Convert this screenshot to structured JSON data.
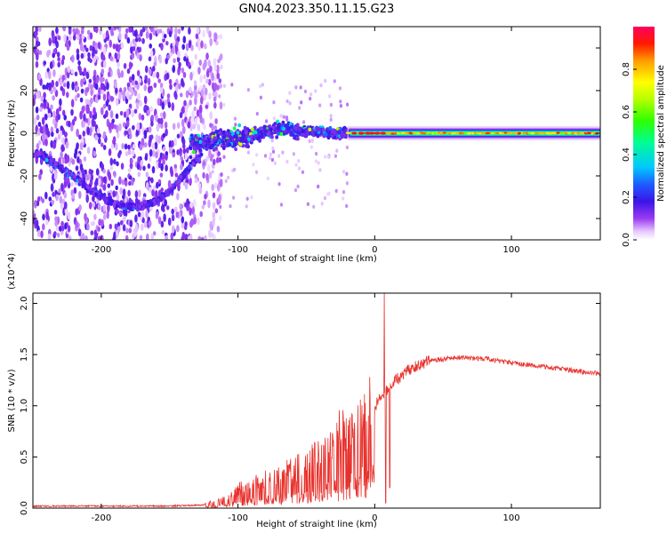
{
  "title": "GN04.2023.350.11.15.G23",
  "chart_data": [
    {
      "type": "heatmap",
      "xlabel": "Height of straight line (km)",
      "ylabel": "Frequency (Hz)",
      "xlim": [
        -250,
        165
      ],
      "ylim": [
        -50,
        50
      ],
      "xticks": [
        -200,
        -100,
        0,
        100
      ],
      "xtick_labels": [
        "-200",
        "-100",
        "0",
        "100"
      ],
      "yticks": [
        -40,
        -20,
        0,
        20,
        40
      ],
      "ytick_labels": [
        "-40",
        "-20",
        "0",
        "20",
        "40"
      ],
      "colorbar": {
        "label": "Normalized spectral amplitude",
        "range": [
          0.0,
          1.0
        ],
        "ticks": [
          0.0,
          0.2,
          0.4,
          0.6,
          0.8
        ],
        "tick_labels": [
          "0.0",
          "0.2",
          "0.4",
          "0.6",
          "0.8"
        ],
        "colormap": "rainbow (white-violet-blue-cyan-green-yellow-red-magenta)"
      },
      "features": {
        "noise_region_x": [
          -250,
          -120
        ],
        "arc_track": [
          [
            -245,
            -10
          ],
          [
            -225,
            -18
          ],
          [
            -205,
            -28
          ],
          [
            -190,
            -33
          ],
          [
            -175,
            -35
          ],
          [
            -160,
            -32
          ],
          [
            -150,
            -27
          ],
          [
            -140,
            -20
          ],
          [
            -130,
            -12
          ]
        ],
        "rising_band": [
          [
            -135,
            -5
          ],
          [
            -110,
            -3
          ],
          [
            -90,
            -1
          ],
          [
            -70,
            2
          ],
          [
            -50,
            1
          ],
          [
            -30,
            0
          ],
          [
            -20,
            0
          ]
        ],
        "flat_band_frequency": 0,
        "flat_band_x": [
          -20,
          165
        ]
      }
    },
    {
      "type": "line",
      "xlabel": "Height of straight line (km)",
      "ylabel": "SNR (10 * v/v)",
      "y_multiplier": "(x10^4)",
      "xlim": [
        -250,
        165
      ],
      "ylim": [
        0,
        2.1
      ],
      "xticks": [
        -200,
        -100,
        0,
        100
      ],
      "xtick_labels": [
        "-200",
        "-100",
        "0",
        "100"
      ],
      "yticks": [
        0.0,
        0.5,
        1.0,
        1.5,
        2.0
      ],
      "ytick_labels": [
        "0.0",
        "0.5",
        "1.0",
        "1.5",
        "2.0"
      ],
      "color": "#e8312c",
      "envelope": [
        [
          -250,
          0.02
        ],
        [
          -200,
          0.02
        ],
        [
          -150,
          0.02
        ],
        [
          -125,
          0.03
        ],
        [
          -110,
          0.08
        ],
        [
          -100,
          0.15
        ],
        [
          -80,
          0.25
        ],
        [
          -60,
          0.32
        ],
        [
          -40,
          0.45
        ],
        [
          -25,
          0.6
        ],
        [
          -15,
          0.7
        ],
        [
          -5,
          0.9
        ],
        [
          5,
          1.1
        ],
        [
          15,
          1.25
        ],
        [
          25,
          1.35
        ],
        [
          40,
          1.44
        ],
        [
          60,
          1.47
        ],
        [
          80,
          1.46
        ],
        [
          100,
          1.42
        ],
        [
          130,
          1.37
        ],
        [
          165,
          1.31
        ]
      ],
      "spikes": [
        [
          7,
          2.1
        ],
        [
          11,
          0.2
        ],
        [
          8,
          0.05
        ]
      ]
    }
  ]
}
